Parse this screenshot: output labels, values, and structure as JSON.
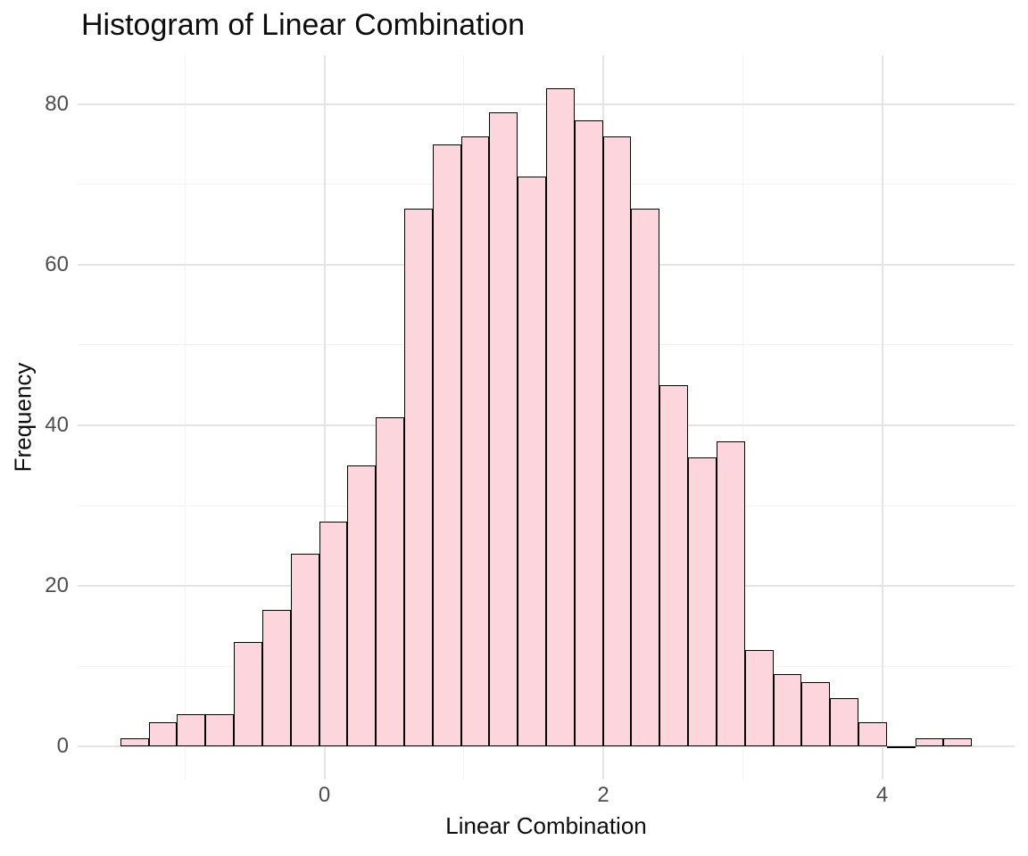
{
  "title": "Histogram of Linear Combination",
  "axes": {
    "x_label": "Linear Combination",
    "y_label": "Frequency"
  },
  "chart_data": {
    "type": "bar",
    "subtype": "histogram",
    "title": "Histogram of Linear Combination",
    "xlabel": "Linear Combination",
    "ylabel": "Frequency",
    "bin_start": -1.464,
    "bin_width": 0.2036,
    "counts": [
      1,
      3,
      4,
      4,
      13,
      17,
      24,
      28,
      35,
      41,
      67,
      75,
      76,
      79,
      71,
      82,
      78,
      76,
      67,
      45,
      36,
      38,
      12,
      9,
      8,
      6,
      3,
      0,
      1,
      1
    ],
    "total_n": 1000,
    "x_major_ticks": [
      0,
      2,
      4
    ],
    "x_minor_ticks": [
      -1,
      1,
      3
    ],
    "y_major_ticks": [
      0,
      20,
      40,
      60,
      80
    ],
    "y_minor_ticks": [
      10,
      30,
      50,
      70
    ],
    "xlim": [
      -1.77,
      4.95
    ],
    "ylim": [
      -4.1,
      86.1
    ],
    "grid": "on",
    "legend": "none",
    "colors": {
      "bar_fill": "#fcd5dd",
      "bar_stroke": "#000000",
      "grid_major": "#e4e4e4",
      "grid_minor": "#f1f1f1",
      "tick_label": "#4d4d4d",
      "text": "#0d0d0d",
      "background": "#ffffff"
    }
  }
}
